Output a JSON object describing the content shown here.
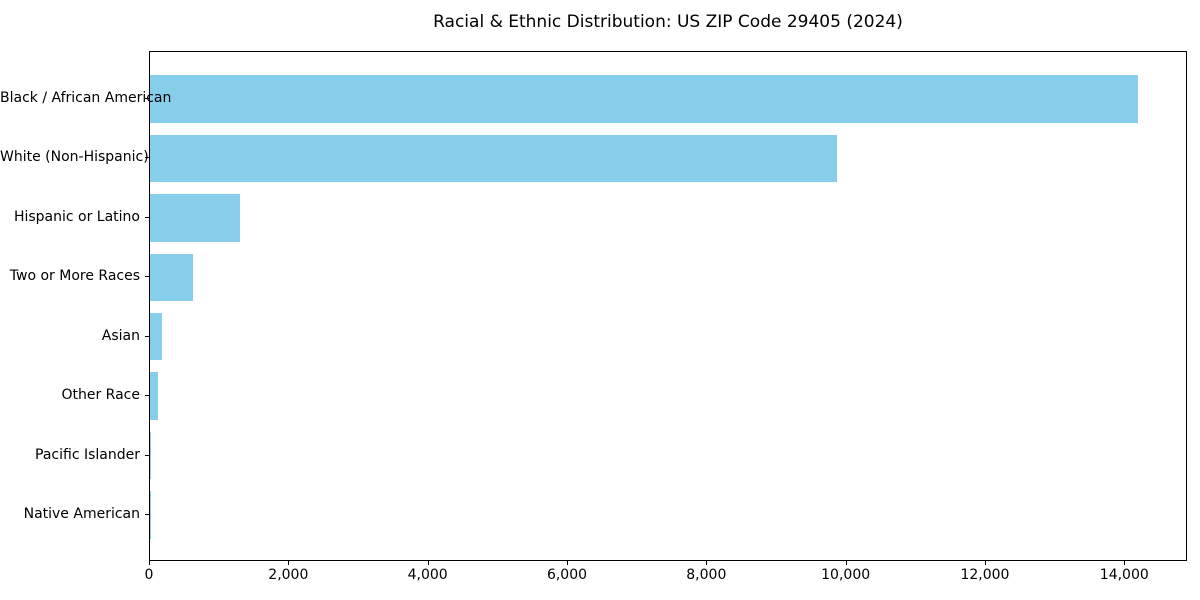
{
  "title": "Racial & Ethnic Distribution: US ZIP Code 29405 (2024)",
  "chart_data": {
    "type": "bar",
    "orientation": "horizontal",
    "title": "Racial & Ethnic Distribution: US ZIP Code 29405 (2024)",
    "xlabel": "",
    "ylabel": "",
    "categories": [
      "Black / African American",
      "White (Non-Hispanic)",
      "Hispanic or Latino",
      "Two or More Races",
      "Asian",
      "Other Race",
      "Pacific Islander",
      "Native American"
    ],
    "values": [
      14180,
      9860,
      1290,
      620,
      170,
      115,
      20,
      5
    ],
    "x_ticks": [
      0,
      2000,
      4000,
      6000,
      8000,
      10000,
      12000,
      14000
    ],
    "x_tick_labels": [
      "0",
      "2,000",
      "4,000",
      "6,000",
      "8,000",
      "10,000",
      "12,000",
      "14,000"
    ],
    "xlim": [
      0,
      14900
    ],
    "bar_color": "#87CEEB",
    "grid": false,
    "legend": "none"
  }
}
